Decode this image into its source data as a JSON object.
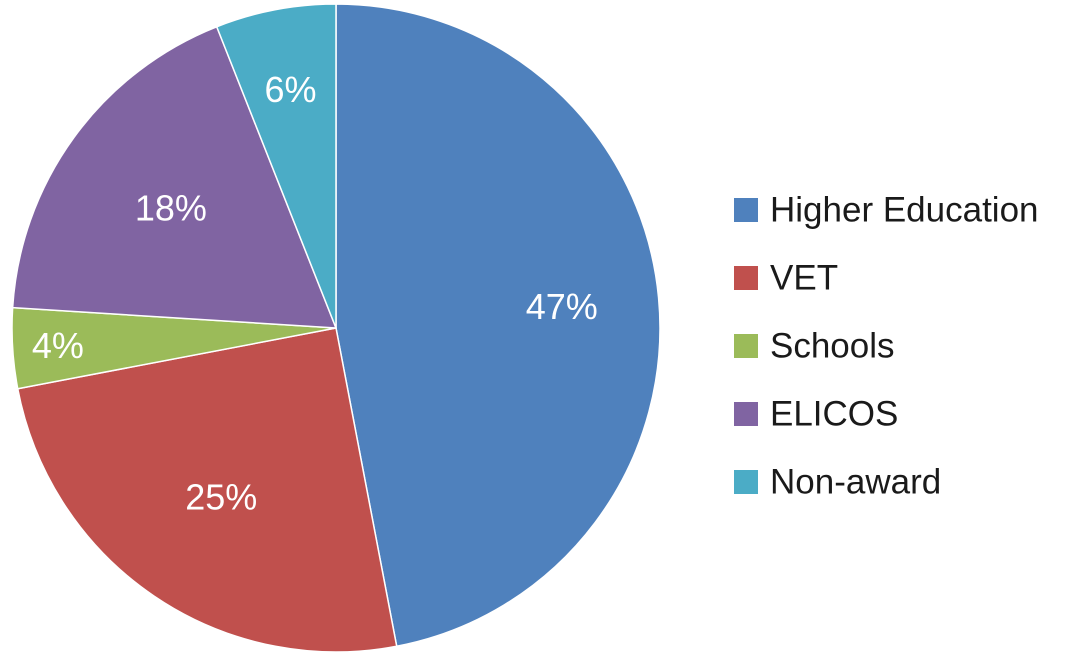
{
  "chart_data": {
    "type": "pie",
    "title": "",
    "categories": [
      "Higher Education",
      "VET",
      "Schools",
      "ELICOS",
      "Non-award"
    ],
    "values": [
      47,
      25,
      4,
      18,
      6
    ],
    "data_labels": [
      "47%",
      "25%",
      "4%",
      "18%",
      "6%"
    ],
    "value_unit": "%",
    "legend": {
      "placement": "right",
      "entries": [
        "Higher Education",
        "VET",
        "Schools",
        "ELICOS",
        "Non-award"
      ]
    },
    "colors": [
      "#4f81bd",
      "#c0504d",
      "#9bbb59",
      "#8064a2",
      "#4bacc6"
    ],
    "start_angle": "12 o'clock",
    "direction": "clockwise"
  }
}
